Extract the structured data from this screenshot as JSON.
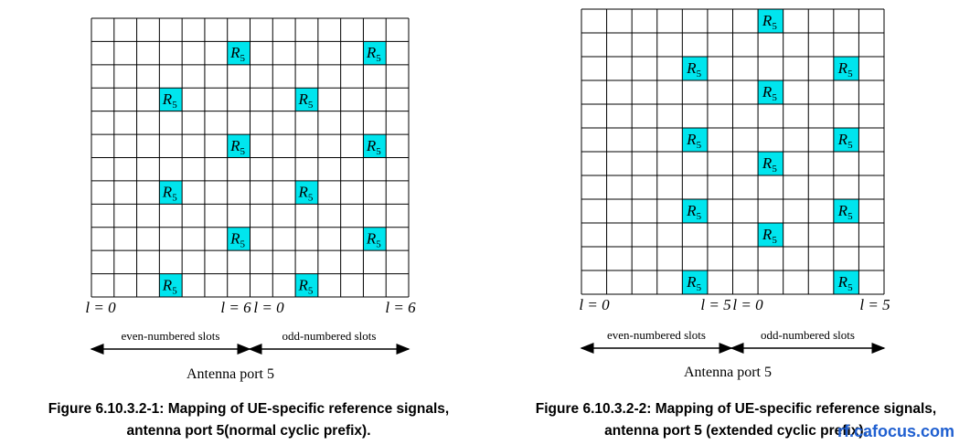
{
  "symbol": {
    "letter": "R",
    "sub": "5"
  },
  "figures": [
    {
      "labels": [
        "l = 0",
        "l = 6",
        "l = 0",
        "l = 6"
      ],
      "even": "even-numbered slots",
      "odd": "odd-numbered slots",
      "port": "Antenna port 5",
      "caption": [
        "Figure 6.10.3.2-1: Mapping of UE-specific reference signals,",
        "antenna port 5(normal cyclic prefix)."
      ]
    },
    {
      "labels": [
        "l = 0",
        "l = 5",
        "l = 0",
        "l = 5"
      ],
      "even": "even-numbered slots",
      "odd": "odd-numbered slots",
      "port": "Antenna port 5",
      "caption": [
        "Figure 6.10.3.2-2: Mapping of UE-specific reference signals,",
        "antenna port 5 (extended cyclic prefix)."
      ]
    }
  ],
  "watermark": "rf.cafocus.com"
}
